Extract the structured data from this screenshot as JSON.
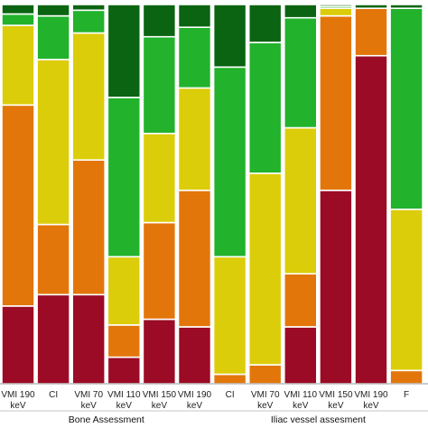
{
  "chart_data": {
    "type": "bar",
    "stacked": true,
    "normalized": true,
    "orientation": "vertical",
    "categories": [
      "VMI 190 keV",
      "CI",
      "VMI 70 keV",
      "VMI 110 keV",
      "VMI 150 keV",
      "VMI 190 keV",
      "CI",
      "VMI 70 keV",
      "VMI 110 keV",
      "VMI 150 keV",
      "VMI 190 keV",
      "F"
    ],
    "tick_lines": [
      [
        "VMI 190",
        "keV"
      ],
      [
        "CI"
      ],
      [
        "VMI 70",
        "keV"
      ],
      [
        "VMI 110",
        "keV"
      ],
      [
        "VMI 150",
        "keV"
      ],
      [
        "VMI 190",
        "keV"
      ],
      [
        "CI"
      ],
      [
        "VMI 70",
        "keV"
      ],
      [
        "VMI 110",
        "keV"
      ],
      [
        "VMI 150",
        "keV"
      ],
      [
        "VMI 190",
        "keV"
      ],
      [
        "F"
      ]
    ],
    "groups": [
      {
        "label": "Bone Assessment",
        "start": 0,
        "end": 5
      },
      {
        "label": "Iliac vessel assesment",
        "start": 6,
        "end": 11
      }
    ],
    "series": [
      {
        "color": "#9b0b25",
        "values": [
          20.5,
          23.5,
          23.5,
          7.0,
          17.0,
          15.0,
          0.0,
          0.0,
          15.0,
          51.0,
          86.5,
          0.0
        ]
      },
      {
        "color": "#e3760b",
        "values": [
          53.0,
          18.5,
          35.5,
          8.5,
          25.5,
          36.0,
          2.5,
          5.0,
          14.0,
          46.0,
          12.5,
          3.5
        ]
      },
      {
        "color": "#dccd0a",
        "values": [
          21.0,
          43.5,
          33.5,
          18.0,
          23.5,
          27.0,
          31.0,
          50.5,
          38.5,
          2.0,
          0.0,
          42.5
        ]
      },
      {
        "color": "#22b22c",
        "values": [
          3.0,
          11.5,
          6.0,
          42.0,
          25.5,
          16.0,
          50.0,
          34.5,
          29.0,
          0.5,
          0.0,
          53.0
        ]
      },
      {
        "color": "#0a6411",
        "values": [
          2.5,
          3.0,
          1.5,
          24.5,
          8.5,
          6.0,
          16.5,
          10.0,
          3.5,
          0.5,
          1.0,
          1.0
        ]
      }
    ],
    "ylim": [
      0,
      100
    ],
    "grid": false,
    "legend": "none",
    "title": "",
    "xlabel": "",
    "ylabel": ""
  }
}
